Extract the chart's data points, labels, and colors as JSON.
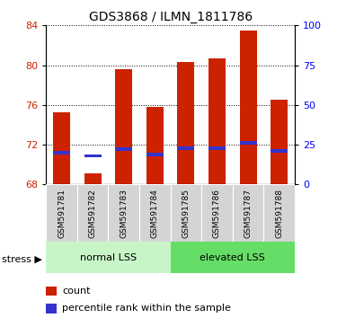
{
  "title": "GDS3868 / ILMN_1811786",
  "samples": [
    "GSM591781",
    "GSM591782",
    "GSM591783",
    "GSM591784",
    "GSM591785",
    "GSM591786",
    "GSM591787",
    "GSM591788"
  ],
  "count_values": [
    75.3,
    69.1,
    79.6,
    75.8,
    80.3,
    80.7,
    83.5,
    76.5
  ],
  "percentile_rank": [
    20,
    18,
    22,
    19,
    23,
    23,
    26,
    21
  ],
  "ymin": 68,
  "ymax": 84,
  "yticks": [
    68,
    72,
    76,
    80,
    84
  ],
  "y2min": 0,
  "y2max": 100,
  "y2ticks": [
    0,
    25,
    50,
    75,
    100
  ],
  "bar_color": "#cc2200",
  "blue_color": "#3333cc",
  "bar_width": 0.55,
  "normal_label": "normal LSS",
  "elevated_label": "elevated LSS",
  "stress_label": "stress ▶",
  "normal_bg": "#c8f5c8",
  "elevated_bg": "#66dd66",
  "legend_count": "count",
  "legend_pct": "percentile rank within the sample"
}
